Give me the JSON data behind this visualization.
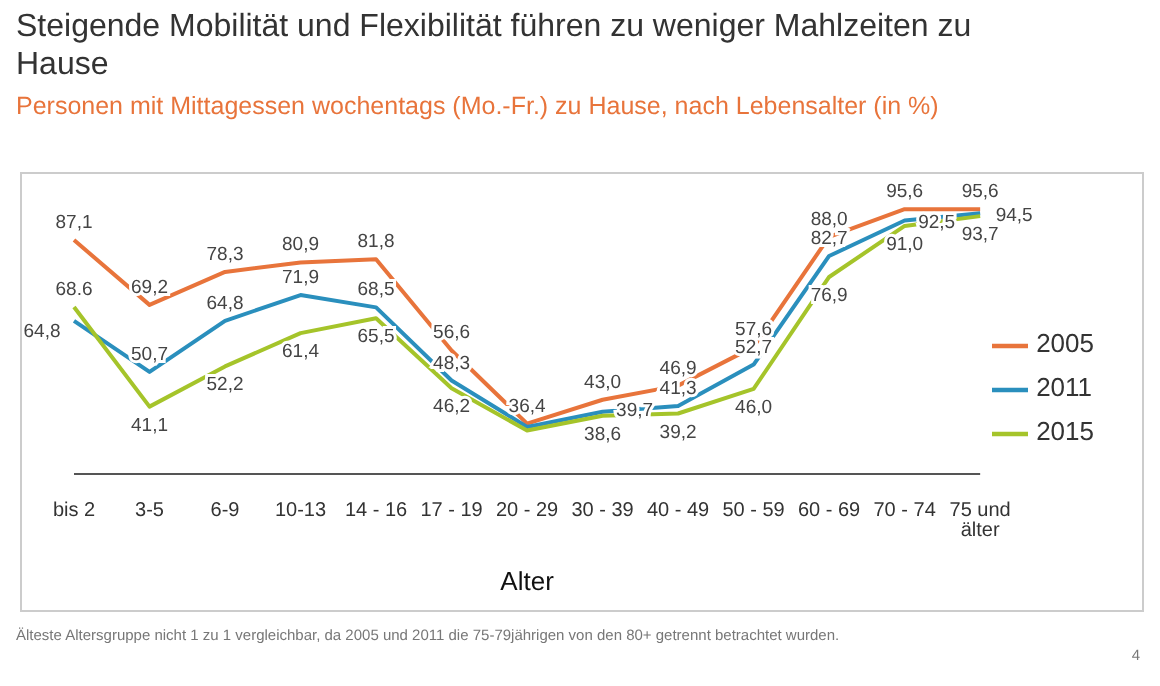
{
  "chart_data": {
    "type": "line",
    "title": "Steigende Mobilität und Flexibilität führen zu weniger Mahlzeiten zu Hause",
    "subtitle": "Personen mit Mittagessen wochentags (Mo.-Fr.) zu Hause, nach Lebensalter (in %)",
    "xlabel": "Alter",
    "categories": [
      "bis 2",
      "3-5",
      "6-9",
      "10-13",
      "14 - 16",
      "17 - 19",
      "20 - 29",
      "30 - 39",
      "40 - 49",
      "50 - 59",
      "60 - 69",
      "70 - 74",
      "75 und älter"
    ],
    "legend": "right",
    "marker": "none",
    "line_style": "solid",
    "series": [
      {
        "name": "2005",
        "color": "#e8743b",
        "values": [
          87.1,
          69.2,
          78.3,
          80.9,
          81.8,
          56.6,
          36.4,
          43.0,
          46.9,
          57.6,
          88.0,
          95.6,
          95.6
        ],
        "value_labels": [
          "87,1",
          "69,2",
          "78,3",
          "80,9",
          "81,8",
          "56,6",
          "36,4",
          "43,0",
          "46,9",
          "57,6",
          "88,0",
          "95,6",
          "95,6"
        ]
      },
      {
        "name": "2011",
        "color": "#2a8fbd",
        "values": [
          64.8,
          50.7,
          64.8,
          71.9,
          68.5,
          48.3,
          35.5,
          39.7,
          41.3,
          52.7,
          82.7,
          92.5,
          94.5
        ],
        "value_labels": [
          "64,8",
          "50,7",
          "64,8",
          "71,9",
          "68,5",
          "48,3",
          null,
          "39,7",
          "41,3",
          "52,7",
          "82,7",
          "92,5",
          "94,5"
        ]
      },
      {
        "name": "2015",
        "color": "#a5c42a",
        "values": [
          68.6,
          41.1,
          52.2,
          61.4,
          65.5,
          46.2,
          34.5,
          38.6,
          39.2,
          46.0,
          76.9,
          91.0,
          93.7
        ],
        "value_labels": [
          "68.6",
          "41,1",
          "52,2",
          "61,4",
          "65,5",
          "46,2",
          null,
          "38,6",
          "39,2",
          "46,0",
          "76,9",
          "91,0",
          "93,7"
        ]
      }
    ],
    "annotations": [
      "Älteste Altersgruppe nicht  1 zu 1 vergleichbar, da 2005 und 2011 die 75-79jährigen von den 80+ getrennt betrachtet wurden.",
      "4"
    ]
  }
}
